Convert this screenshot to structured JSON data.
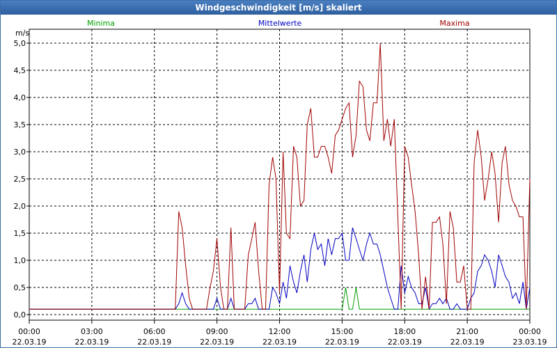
{
  "window": {
    "title": "Windgeschwindigkeit [m/s] skaliert"
  },
  "chart_data": {
    "type": "line",
    "title": "Windgeschwindigkeit [m/s] skaliert",
    "ylabel": "m/s",
    "ylim": [
      0,
      5
    ],
    "xlim": [
      0,
      24
    ],
    "grid": true,
    "y_ticks": [
      "0,0",
      "0,5",
      "1,0",
      "1,5",
      "2,0",
      "2,5",
      "3,0",
      "3,5",
      "4,0",
      "4,5",
      "5,0"
    ],
    "x_ticks": [
      {
        "time": "00:00",
        "date": "22.03.19"
      },
      {
        "time": "03:00",
        "date": "22.03.19"
      },
      {
        "time": "06:00",
        "date": "22.03.19"
      },
      {
        "time": "09:00",
        "date": "22.03.19"
      },
      {
        "time": "12:00",
        "date": "22.03.19"
      },
      {
        "time": "15:00",
        "date": "22.03.19"
      },
      {
        "time": "18:00",
        "date": "22.03.19"
      },
      {
        "time": "21:00",
        "date": "22.03.19"
      },
      {
        "time": "00:00",
        "date": "23.03.19"
      }
    ],
    "colors": {
      "Minima": "#00a000",
      "Mittelwerte": "#0000c0",
      "Maxima": "#a00000"
    },
    "series": [
      {
        "name": "Minima",
        "points": [
          [
            0,
            0.1
          ],
          [
            15,
            0.1
          ],
          [
            15.17,
            0.5
          ],
          [
            15.33,
            0.1
          ],
          [
            15.5,
            0.1
          ],
          [
            15.67,
            0.5
          ],
          [
            15.83,
            0.1
          ],
          [
            24,
            0.1
          ]
        ]
      },
      {
        "name": "Mittelwerte",
        "points": [
          [
            0,
            0.1
          ],
          [
            7,
            0.1
          ],
          [
            7.17,
            0.2
          ],
          [
            7.33,
            0.4
          ],
          [
            7.5,
            0.2
          ],
          [
            7.67,
            0.1
          ],
          [
            8.83,
            0.1
          ],
          [
            9,
            0.3
          ],
          [
            9.17,
            0.1
          ],
          [
            9.5,
            0.1
          ],
          [
            9.67,
            0.3
          ],
          [
            9.83,
            0.1
          ],
          [
            10.33,
            0.1
          ],
          [
            10.5,
            0.2
          ],
          [
            10.67,
            0.2
          ],
          [
            10.83,
            0.3
          ],
          [
            11,
            0.1
          ],
          [
            11.5,
            0.1
          ],
          [
            11.67,
            0.5
          ],
          [
            11.83,
            0.4
          ],
          [
            12,
            0.2
          ],
          [
            12.17,
            0.6
          ],
          [
            12.33,
            0.3
          ],
          [
            12.5,
            0.9
          ],
          [
            12.67,
            0.6
          ],
          [
            12.83,
            0.4
          ],
          [
            13,
            0.8
          ],
          [
            13.17,
            1.1
          ],
          [
            13.33,
            0.6
          ],
          [
            13.5,
            1.2
          ],
          [
            13.67,
            1.5
          ],
          [
            13.83,
            1.2
          ],
          [
            14,
            1.3
          ],
          [
            14.17,
            0.9
          ],
          [
            14.33,
            1.4
          ],
          [
            14.5,
            1.1
          ],
          [
            14.67,
            1.4
          ],
          [
            14.83,
            1.4
          ],
          [
            15,
            1.5
          ],
          [
            15.17,
            1.0
          ],
          [
            15.33,
            1.0
          ],
          [
            15.5,
            1.6
          ],
          [
            15.67,
            1.4
          ],
          [
            15.83,
            1.2
          ],
          [
            16,
            1.0
          ],
          [
            16.17,
            1.3
          ],
          [
            16.33,
            1.5
          ],
          [
            16.5,
            1.3
          ],
          [
            16.67,
            1.3
          ],
          [
            16.83,
            1.1
          ],
          [
            17,
            0.8
          ],
          [
            17.17,
            0.5
          ],
          [
            17.33,
            0.3
          ],
          [
            17.5,
            0.1
          ],
          [
            17.67,
            0.1
          ],
          [
            17.83,
            0.9
          ],
          [
            18,
            0.4
          ],
          [
            18.17,
            0.7
          ],
          [
            18.33,
            0.5
          ],
          [
            18.5,
            0.4
          ],
          [
            18.67,
            0.2
          ],
          [
            18.83,
            0.2
          ],
          [
            19,
            0.5
          ],
          [
            19.17,
            0.1
          ],
          [
            19.33,
            0.2
          ],
          [
            19.5,
            0.2
          ],
          [
            19.67,
            0.3
          ],
          [
            19.83,
            0.2
          ],
          [
            20,
            0.3
          ],
          [
            20.17,
            0.1
          ],
          [
            20.33,
            0.1
          ],
          [
            20.5,
            0.2
          ],
          [
            20.67,
            0.1
          ],
          [
            21,
            0.1
          ],
          [
            21.17,
            0.3
          ],
          [
            21.33,
            0.4
          ],
          [
            21.5,
            0.8
          ],
          [
            21.67,
            0.9
          ],
          [
            21.83,
            1.1
          ],
          [
            22,
            1.0
          ],
          [
            22.17,
            0.8
          ],
          [
            22.33,
            0.5
          ],
          [
            22.5,
            1.1
          ],
          [
            22.67,
            0.9
          ],
          [
            22.83,
            0.7
          ],
          [
            23,
            0.6
          ],
          [
            23.17,
            0.3
          ],
          [
            23.33,
            0.4
          ],
          [
            23.5,
            0.2
          ],
          [
            23.67,
            0.6
          ],
          [
            23.83,
            0.1
          ],
          [
            24,
            0.5
          ]
        ]
      },
      {
        "name": "Maxima",
        "points": [
          [
            0,
            0.1
          ],
          [
            6.83,
            0.1
          ],
          [
            7,
            0.1
          ],
          [
            7.17,
            1.9
          ],
          [
            7.33,
            1.6
          ],
          [
            7.5,
            0.9
          ],
          [
            7.67,
            0.3
          ],
          [
            7.83,
            0.1
          ],
          [
            8.33,
            0.1
          ],
          [
            8.5,
            0.1
          ],
          [
            8.67,
            0.5
          ],
          [
            8.83,
            0.8
          ],
          [
            9,
            1.4
          ],
          [
            9.17,
            0.5
          ],
          [
            9.33,
            0.1
          ],
          [
            9.5,
            0.1
          ],
          [
            9.67,
            1.6
          ],
          [
            9.83,
            0.1
          ],
          [
            10,
            0.1
          ],
          [
            10.33,
            0.1
          ],
          [
            10.5,
            1.1
          ],
          [
            10.67,
            1.4
          ],
          [
            10.83,
            1.7
          ],
          [
            11,
            0.8
          ],
          [
            11.17,
            0.1
          ],
          [
            11.33,
            0.1
          ],
          [
            11.5,
            2.4
          ],
          [
            11.67,
            2.9
          ],
          [
            11.83,
            2.5
          ],
          [
            12,
            0.4
          ],
          [
            12.17,
            3.0
          ],
          [
            12.33,
            1.5
          ],
          [
            12.5,
            1.4
          ],
          [
            12.67,
            3.1
          ],
          [
            12.83,
            2.9
          ],
          [
            13,
            2.0
          ],
          [
            13.17,
            2.1
          ],
          [
            13.33,
            3.5
          ],
          [
            13.5,
            3.8
          ],
          [
            13.67,
            2.9
          ],
          [
            13.83,
            2.9
          ],
          [
            14,
            3.1
          ],
          [
            14.17,
            3.1
          ],
          [
            14.33,
            2.9
          ],
          [
            14.5,
            2.6
          ],
          [
            14.67,
            3.3
          ],
          [
            14.83,
            3.4
          ],
          [
            15,
            3.6
          ],
          [
            15.17,
            3.8
          ],
          [
            15.33,
            3.9
          ],
          [
            15.5,
            2.9
          ],
          [
            15.67,
            3.3
          ],
          [
            15.83,
            4.3
          ],
          [
            16,
            4.2
          ],
          [
            16.17,
            3.4
          ],
          [
            16.33,
            3.2
          ],
          [
            16.5,
            3.9
          ],
          [
            16.67,
            3.9
          ],
          [
            16.83,
            5.0
          ],
          [
            17,
            3.2
          ],
          [
            17.17,
            3.6
          ],
          [
            17.33,
            3.1
          ],
          [
            17.5,
            3.6
          ],
          [
            17.67,
            1.8
          ],
          [
            17.83,
            0.1
          ],
          [
            18,
            3.1
          ],
          [
            18.17,
            2.9
          ],
          [
            18.33,
            2.4
          ],
          [
            18.5,
            1.9
          ],
          [
            18.67,
            1.1
          ],
          [
            18.83,
            0.1
          ],
          [
            19,
            0.7
          ],
          [
            19.17,
            0.1
          ],
          [
            19.33,
            1.7
          ],
          [
            19.5,
            1.7
          ],
          [
            19.67,
            1.8
          ],
          [
            19.83,
            1.3
          ],
          [
            20,
            0.2
          ],
          [
            20.17,
            1.9
          ],
          [
            20.33,
            1.6
          ],
          [
            20.5,
            0.6
          ],
          [
            20.67,
            0.6
          ],
          [
            20.83,
            0.9
          ],
          [
            21,
            0.1
          ],
          [
            21.17,
            0.1
          ],
          [
            21.33,
            2.8
          ],
          [
            21.5,
            3.4
          ],
          [
            21.67,
            2.9
          ],
          [
            21.83,
            2.1
          ],
          [
            22,
            2.5
          ],
          [
            22.17,
            3.0
          ],
          [
            22.33,
            2.6
          ],
          [
            22.5,
            1.7
          ],
          [
            22.67,
            2.8
          ],
          [
            22.83,
            3.1
          ],
          [
            23,
            2.4
          ],
          [
            23.17,
            2.1
          ],
          [
            23.33,
            2.0
          ],
          [
            23.5,
            1.8
          ],
          [
            23.67,
            1.8
          ],
          [
            23.83,
            0.1
          ],
          [
            24,
            2.5
          ]
        ]
      }
    ]
  }
}
